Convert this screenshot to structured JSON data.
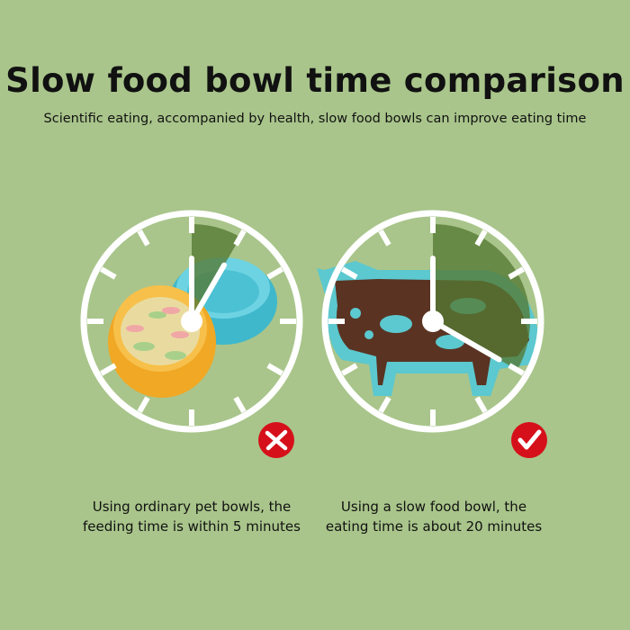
{
  "header": {
    "title": "Slow food bowl time comparison",
    "subtitle": "Scientific eating, accompanied by health, slow food bowls can improve eating time"
  },
  "comparisons": [
    {
      "caption_line1": "Using ordinary pet bowls, the",
      "caption_line2": "feeding time is within 5 minutes",
      "minutes": 5,
      "verdict_icon": "cross-icon",
      "verdict_color": "#d6101a"
    },
    {
      "caption_line1": "Using a slow food bowl, the",
      "caption_line2": "eating time is about 20 minutes",
      "minutes": 20,
      "verdict_icon": "check-icon",
      "verdict_color": "#d6101a"
    }
  ],
  "colors": {
    "background": "#a9c58b",
    "sector": "#557a33",
    "bowl_orange": "#f5b12a",
    "bowl_blue": "#4fc6d8",
    "slow_bowl": "#5cc8cf",
    "kibble": "#5a3322"
  }
}
